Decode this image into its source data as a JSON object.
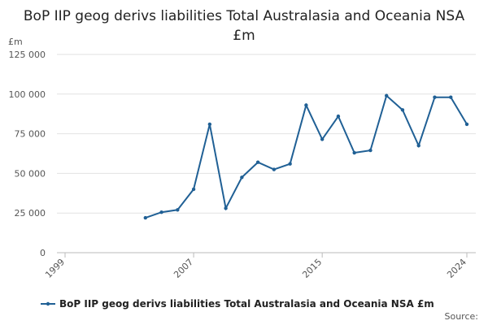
{
  "chart_data": {
    "type": "line",
    "title": "BoP IIP geog derivs liabilities Total Australasia and Oceania NSA £m",
    "y_label": "£m",
    "source_label": "Source:",
    "x": [
      2004,
      2005,
      2006,
      2007,
      2008,
      2009,
      2010,
      2011,
      2012,
      2013,
      2014,
      2015,
      2016,
      2017,
      2018,
      2019,
      2020,
      2021,
      2022,
      2023,
      2024
    ],
    "series": [
      {
        "name": "BoP IIP geog derivs liabilities Total Australasia and Oceania NSA £m",
        "color": "#206095",
        "values": [
          22000,
          25500,
          27000,
          40000,
          81000,
          28000,
          47500,
          57000,
          52500,
          56000,
          93000,
          71500,
          86000,
          63000,
          64500,
          99000,
          90000,
          67500,
          98000,
          98000,
          81000
        ]
      }
    ],
    "xlim": [
      1999,
      2024
    ],
    "xticks": [
      1999,
      2007,
      2015,
      2024
    ],
    "ylim": [
      0,
      125000
    ],
    "yticks": [
      0,
      {
        "value": 25000,
        "label": "25 000"
      },
      {
        "value": 50000,
        "label": "50 000"
      },
      {
        "value": 75000,
        "label": "75 000"
      },
      {
        "value": 100000,
        "label": "100 000"
      },
      {
        "value": 125000,
        "label": "125 000"
      }
    ],
    "grid": true
  }
}
